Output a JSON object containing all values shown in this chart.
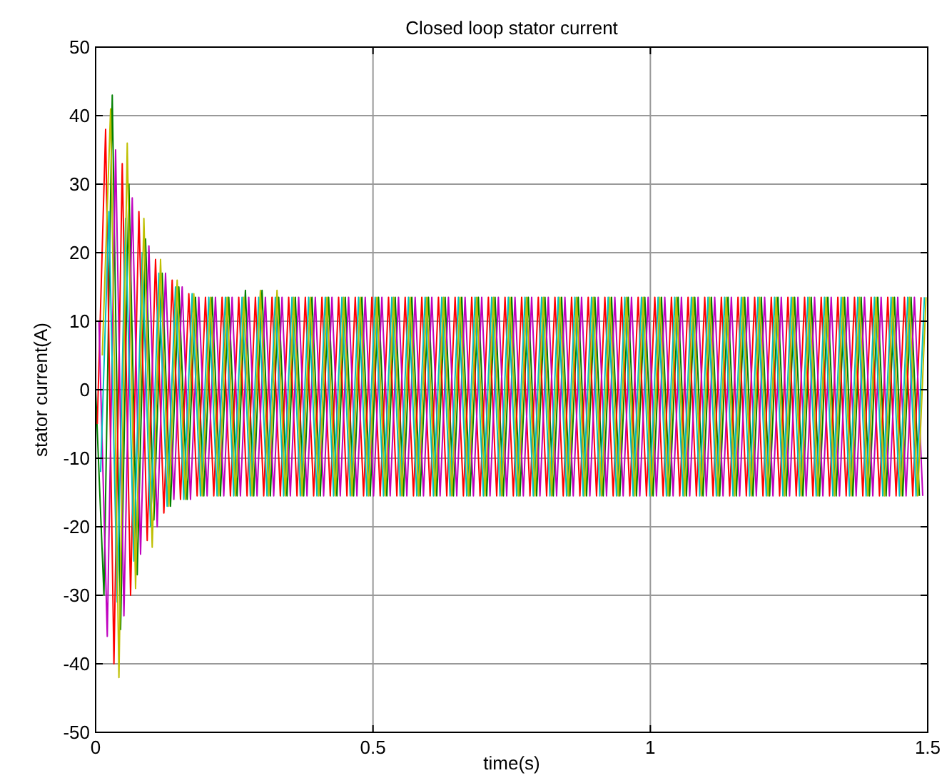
{
  "chart_data": {
    "type": "line",
    "title": "Closed loop stator current",
    "xlabel": "time(s)",
    "ylabel": "stator current(A)",
    "xlim": [
      0,
      1.5
    ],
    "ylim": [
      -50,
      50
    ],
    "xticks": [
      0,
      0.5,
      1,
      1.5
    ],
    "yticks": [
      -50,
      -40,
      -30,
      -20,
      -10,
      0,
      10,
      20,
      30,
      40,
      50
    ],
    "grid": true,
    "series": [
      {
        "color": "#008000",
        "x": [
          0,
          0.015,
          0.03,
          0.045,
          0.06,
          0.075,
          0.09,
          0.105,
          0.12,
          0.135,
          0.15,
          0.165,
          0.18,
          0.195,
          0.21,
          0.225,
          0.24,
          0.255,
          0.27,
          0.285,
          0.3,
          0.315,
          0.33,
          0.345,
          0.36,
          0.375,
          0.39,
          0.405,
          0.42,
          0.435,
          0.45,
          0.465,
          0.48,
          0.495,
          0.51,
          0.525,
          0.54,
          0.555,
          0.57,
          0.585,
          0.6,
          0.615,
          0.63,
          0.645,
          0.66,
          0.675,
          0.69,
          0.705,
          0.72,
          0.735,
          0.75,
          0.765,
          0.78,
          0.795,
          0.81,
          0.825,
          0.84,
          0.855,
          0.87,
          0.885,
          0.9,
          0.915,
          0.93,
          0.945,
          0.96,
          0.975,
          0.99,
          1.005,
          1.02,
          1.035,
          1.05,
          1.065,
          1.08,
          1.095,
          1.11,
          1.125,
          1.14,
          1.155,
          1.17,
          1.185,
          1.2,
          1.215,
          1.23,
          1.245,
          1.26,
          1.275,
          1.29,
          1.305,
          1.32,
          1.335,
          1.35,
          1.365,
          1.38,
          1.395,
          1.41,
          1.425,
          1.44,
          1.455,
          1.47,
          1.485
        ],
        "values": [
          0,
          -30,
          43,
          -35,
          30,
          -27,
          22,
          -19,
          17,
          -17,
          15,
          -16,
          13.5,
          -15.5,
          13.5,
          -15.5,
          13.5,
          -15.5,
          14.5,
          -15.5,
          14.5,
          -15.5,
          13.5,
          -15.5,
          13.5,
          -15.5,
          13.5,
          -15.5,
          13.5,
          -15.5,
          13.5,
          -15.5,
          13.5,
          -15.5,
          13.5,
          -15.5,
          13.5,
          -15.5,
          13.5,
          -15.5,
          13.5,
          -15.5,
          13.5,
          -15.5,
          13.5,
          -15.5,
          13.5,
          -15.5,
          13.5,
          -15.5,
          13.5,
          -15.5,
          13.5,
          -15.5,
          13.5,
          -15.5,
          13.5,
          -15.5,
          13.5,
          -15.5,
          13.5,
          -15.5,
          13.5,
          -15.5,
          13.5,
          -15.5,
          13.5,
          -15.5,
          13.5,
          -15.5,
          13.5,
          -15.5,
          13.5,
          -15.5,
          13.5,
          -15.5,
          13.5,
          -15.5,
          13.5,
          -15.5,
          13.5,
          -15.5,
          13.5,
          -15.5,
          13.5,
          -15.5,
          13.5,
          -15.5,
          13.5,
          -15.5,
          13.5,
          -15.5,
          13.5,
          -15.5,
          13.5,
          -15.5,
          13.5,
          -15.5,
          13.5,
          -15.5
        ]
      },
      {
        "color": "#ff0000",
        "x": [
          0.003,
          0.018,
          0.033,
          0.048,
          0.063,
          0.078,
          0.093,
          0.108,
          0.123,
          0.138,
          0.153,
          0.168,
          0.183,
          0.198,
          0.213,
          0.228,
          0.243,
          0.258,
          0.273,
          0.288,
          0.303,
          0.318,
          0.333,
          0.348,
          0.363,
          0.378,
          0.393,
          0.408,
          0.423,
          0.438,
          0.453,
          0.468,
          0.483,
          0.498,
          0.513,
          0.528,
          0.543,
          0.558,
          0.573,
          0.588,
          0.603,
          0.618,
          0.633,
          0.648,
          0.663,
          0.678,
          0.693,
          0.708,
          0.723,
          0.738,
          0.753,
          0.768,
          0.783,
          0.798,
          0.813,
          0.828,
          0.843,
          0.858,
          0.873,
          0.888,
          0.903,
          0.918,
          0.933,
          0.948,
          0.963,
          0.978,
          0.993,
          1.008,
          1.023,
          1.038,
          1.053,
          1.068,
          1.083,
          1.098,
          1.113,
          1.128,
          1.143,
          1.158,
          1.173,
          1.188,
          1.203,
          1.218,
          1.233,
          1.248,
          1.263,
          1.278,
          1.293,
          1.308,
          1.323,
          1.338,
          1.353,
          1.368,
          1.383,
          1.398,
          1.413,
          1.428,
          1.443,
          1.458,
          1.473,
          1.488
        ],
        "values": [
          -5,
          38,
          -40,
          33,
          -30,
          26,
          -22,
          19,
          -18,
          16,
          -16,
          14,
          -15.5,
          13.5,
          -15.5,
          13.5,
          -15.5,
          13.5,
          -15.5,
          13.5,
          -15.5,
          13.5,
          -15.5,
          13.5,
          -15.5,
          13.5,
          -15.5,
          13.5,
          -15.5,
          13.5,
          -15.5,
          13.5,
          -15.5,
          13.5,
          -15.5,
          13.5,
          -15.5,
          13.5,
          -15.5,
          13.5,
          -15.5,
          13.5,
          -15.5,
          13.5,
          -15.5,
          13.5,
          -15.5,
          13.5,
          -15.5,
          13.5,
          -15.5,
          13.5,
          -15.5,
          13.5,
          -15.5,
          13.5,
          -15.5,
          13.5,
          -15.5,
          13.5,
          -15.5,
          13.5,
          -15.5,
          13.5,
          -15.5,
          13.5,
          -15.5,
          13.5,
          -15.5,
          13.5,
          -15.5,
          13.5,
          -15.5,
          13.5,
          -15.5,
          13.5,
          -15.5,
          13.5,
          -15.5,
          13.5,
          -15.5,
          13.5,
          -15.5,
          13.5,
          -15.5,
          13.5,
          -15.5,
          13.5,
          -15.5,
          13.5,
          -15.5,
          13.5,
          -15.5,
          13.5,
          -15.5,
          13.5,
          -15.5,
          13.5,
          -15.5,
          13.5
        ]
      },
      {
        "color": "#bf00bf",
        "x": [
          0.006,
          0.021,
          0.036,
          0.051,
          0.066,
          0.081,
          0.096,
          0.111,
          0.126,
          0.141,
          0.156,
          0.171,
          0.186,
          0.201,
          0.216,
          0.231,
          0.246,
          0.261,
          0.276,
          0.291,
          0.306,
          0.321,
          0.336,
          0.351,
          0.366,
          0.381,
          0.396,
          0.411,
          0.426,
          0.441,
          0.456,
          0.471,
          0.486,
          0.501,
          0.516,
          0.531,
          0.546,
          0.561,
          0.576,
          0.591,
          0.606,
          0.621,
          0.636,
          0.651,
          0.666,
          0.681,
          0.696,
          0.711,
          0.726,
          0.741,
          0.756,
          0.771,
          0.786,
          0.801,
          0.816,
          0.831,
          0.846,
          0.861,
          0.876,
          0.891,
          0.906,
          0.921,
          0.936,
          0.951,
          0.966,
          0.981,
          0.996,
          1.011,
          1.026,
          1.041,
          1.056,
          1.071,
          1.086,
          1.101,
          1.116,
          1.131,
          1.146,
          1.161,
          1.176,
          1.191,
          1.206,
          1.221,
          1.236,
          1.251,
          1.266,
          1.281,
          1.296,
          1.311,
          1.326,
          1.341,
          1.356,
          1.371,
          1.386,
          1.401,
          1.416,
          1.431,
          1.446,
          1.461,
          1.476,
          1.491
        ],
        "values": [
          10,
          -36,
          35,
          -33,
          28,
          -24,
          21,
          -20,
          17,
          -16,
          15,
          -16,
          13.5,
          -15.5,
          13.5,
          -15.5,
          13.5,
          -15.5,
          13.5,
          -15.5,
          13.5,
          -15.5,
          13.5,
          -15.5,
          13.5,
          -15.5,
          13.5,
          -15.5,
          13.5,
          -15.5,
          13.5,
          -15.5,
          13.5,
          -15.5,
          13.5,
          -15.5,
          13.5,
          -15.5,
          13.5,
          -15.5,
          13.5,
          -15.5,
          13.5,
          -15.5,
          13.5,
          -15.5,
          13.5,
          -15.5,
          13.5,
          -15.5,
          13.5,
          -15.5,
          13.5,
          -15.5,
          13.5,
          -15.5,
          13.5,
          -15.5,
          13.5,
          -15.5,
          13.5,
          -15.5,
          13.5,
          -15.5,
          13.5,
          -15.5,
          13.5,
          -15.5,
          13.5,
          -15.5,
          13.5,
          -15.5,
          13.5,
          -15.5,
          13.5,
          -15.5,
          13.5,
          -15.5,
          13.5,
          -15.5,
          13.5,
          -15.5,
          13.5,
          -15.5,
          13.5,
          -15.5,
          13.5,
          -15.5,
          13.5,
          -15.5,
          13.5,
          -15.5,
          13.5,
          -15.5,
          13.5,
          -15.5,
          13.5,
          -15.5,
          13.5,
          -15.5
        ]
      },
      {
        "color": "#00bfbf",
        "x": [
          0.009,
          0.024,
          0.039,
          0.054,
          0.069,
          0.084,
          0.099,
          0.114,
          0.129,
          0.144,
          0.159,
          0.174,
          0.189,
          0.204,
          0.219,
          0.234,
          0.249,
          0.264,
          0.279,
          0.294,
          0.309,
          0.324,
          0.339,
          0.354,
          0.369,
          0.384,
          0.399,
          0.414,
          0.429,
          0.444,
          0.459,
          0.474,
          0.489,
          0.504,
          0.519,
          0.534,
          0.549,
          0.564,
          0.579,
          0.594,
          0.609,
          0.624,
          0.639,
          0.654,
          0.669,
          0.684,
          0.699,
          0.714,
          0.729,
          0.744,
          0.759,
          0.774,
          0.789,
          0.804,
          0.819,
          0.834,
          0.849,
          0.864,
          0.879,
          0.894,
          0.909,
          0.924,
          0.939,
          0.954,
          0.969,
          0.984,
          0.999,
          1.014,
          1.029,
          1.044,
          1.059,
          1.074,
          1.089,
          1.104,
          1.119,
          1.134,
          1.149,
          1.164,
          1.179,
          1.194,
          1.209,
          1.224,
          1.239,
          1.254,
          1.269,
          1.284,
          1.299,
          1.314,
          1.329,
          1.344,
          1.359,
          1.374,
          1.389,
          1.404,
          1.419,
          1.434,
          1.449,
          1.464,
          1.479,
          1.494
        ],
        "values": [
          -12,
          26,
          -31,
          25,
          -25,
          20,
          -20,
          17,
          -17,
          15,
          -16,
          14,
          -15.5,
          13.5,
          -15.5,
          13.5,
          -15.5,
          13.5,
          -15.5,
          13.5,
          -15.5,
          13.5,
          -15.5,
          13.5,
          -15.5,
          13.5,
          -15.5,
          13.5,
          -15.5,
          13.5,
          -15.5,
          13.5,
          -15.5,
          13.5,
          -15.5,
          13.5,
          -15.5,
          13.5,
          -15.5,
          13.5,
          -15.5,
          13.5,
          -15.5,
          13.5,
          -15.5,
          13.5,
          -15.5,
          13.5,
          -15.5,
          13.5,
          -15.5,
          13.5,
          -15.5,
          13.5,
          -15.5,
          13.5,
          -15.5,
          13.5,
          -15.5,
          13.5,
          -15.5,
          13.5,
          -15.5,
          13.5,
          -15.5,
          13.5,
          -15.5,
          13.5,
          -15.5,
          13.5,
          -15.5,
          13.5,
          -15.5,
          13.5,
          -15.5,
          13.5,
          -15.5,
          13.5,
          -15.5,
          13.5,
          -15.5,
          13.5,
          -15.5,
          13.5,
          -15.5,
          13.5,
          -15.5,
          13.5,
          -15.5,
          13.5,
          -15.5,
          13.5,
          -15.5,
          13.5,
          -15.5,
          13.5,
          -15.5,
          13.5,
          -15.5,
          13.5
        ]
      },
      {
        "color": "#bfbf00",
        "x": [
          0.012,
          0.027,
          0.042,
          0.057,
          0.072,
          0.087,
          0.102,
          0.117,
          0.132,
          0.147,
          0.162,
          0.177,
          0.192,
          0.207,
          0.222,
          0.237,
          0.252,
          0.267,
          0.282,
          0.297,
          0.312,
          0.327,
          0.342,
          0.357,
          0.372,
          0.387,
          0.402,
          0.417,
          0.432,
          0.447,
          0.462,
          0.477,
          0.492,
          0.507,
          0.522,
          0.537,
          0.552,
          0.567,
          0.582,
          0.597,
          0.612,
          0.627,
          0.642,
          0.657,
          0.672,
          0.687,
          0.702,
          0.717,
          0.732,
          0.747,
          0.762,
          0.777,
          0.792,
          0.807,
          0.822,
          0.837,
          0.852,
          0.867,
          0.882,
          0.897,
          0.912,
          0.927,
          0.942,
          0.957,
          0.972,
          0.987,
          1.002,
          1.017,
          1.032,
          1.047,
          1.062,
          1.077,
          1.092,
          1.107,
          1.122,
          1.137,
          1.152,
          1.167,
          1.182,
          1.197,
          1.212,
          1.227,
          1.242,
          1.257,
          1.272,
          1.287,
          1.302,
          1.317,
          1.332,
          1.347,
          1.362,
          1.377,
          1.392,
          1.407,
          1.422,
          1.437,
          1.452,
          1.467,
          1.482,
          1.497
        ],
        "values": [
          5,
          41,
          -42,
          36,
          -29,
          25,
          -23,
          19,
          -17,
          16,
          -16,
          14,
          -15.5,
          13.5,
          -15.5,
          13.5,
          -15.5,
          13.5,
          -15.5,
          14.5,
          -15.5,
          14.5,
          -15.5,
          13.5,
          -15.5,
          13.5,
          -15.5,
          13.5,
          -15.5,
          13.5,
          -15.5,
          13.5,
          -15.5,
          13.5,
          -15.5,
          13.5,
          -15.5,
          13.5,
          -15.5,
          13.5,
          -15.5,
          13.5,
          -15.5,
          13.5,
          -15.5,
          13.5,
          -15.5,
          13.5,
          -15.5,
          13.5,
          -15.5,
          13.5,
          -15.5,
          13.5,
          -15.5,
          13.5,
          -15.5,
          13.5,
          -15.5,
          13.5,
          -15.5,
          13.5,
          -15.5,
          13.5,
          -15.5,
          13.5,
          -15.5,
          13.5,
          -15.5,
          13.5,
          -15.5,
          13.5,
          -15.5,
          13.5,
          -15.5,
          13.5,
          -15.5,
          13.5,
          -15.5,
          13.5,
          -15.5,
          13.5,
          -15.5,
          13.5,
          -15.5,
          13.5,
          -15.5,
          13.5,
          -15.5,
          13.5,
          -15.5,
          13.5,
          -15.5,
          13.5,
          -15.5,
          13.5,
          -15.5,
          13.5,
          -15.5,
          13.5
        ]
      }
    ]
  }
}
